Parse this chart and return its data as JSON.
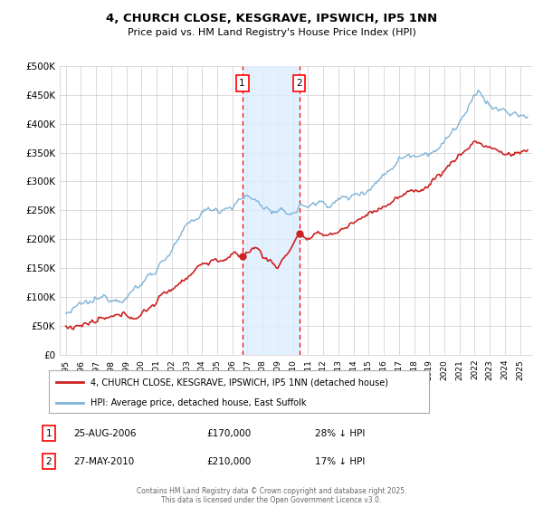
{
  "title": "4, CHURCH CLOSE, KESGRAVE, IPSWICH, IP5 1NN",
  "subtitle": "Price paid vs. HM Land Registry's House Price Index (HPI)",
  "ytick_labels": [
    "£0",
    "£50K",
    "£100K",
    "£150K",
    "£200K",
    "£250K",
    "£300K",
    "£350K",
    "£400K",
    "£450K",
    "£500K"
  ],
  "yticks": [
    0,
    50000,
    100000,
    150000,
    200000,
    250000,
    300000,
    350000,
    400000,
    450000,
    500000
  ],
  "hpi_color": "#7eb3d8",
  "price_color": "#cc2222",
  "sale1_date": "25-AUG-2006",
  "sale1_price": "£170,000",
  "sale1_hpi_pct": "28% ↓ HPI",
  "sale1_year": 2006.65,
  "sale1_value": 170000,
  "sale2_date": "27-MAY-2010",
  "sale2_price": "£210,000",
  "sale2_hpi_pct": "17% ↓ HPI",
  "sale2_year": 2010.41,
  "sale2_value": 210000,
  "legend_property": "4, CHURCH CLOSE, KESGRAVE, IPSWICH, IP5 1NN (detached house)",
  "legend_hpi": "HPI: Average price, detached house, East Suffolk",
  "footnote1": "Contains HM Land Registry data © Crown copyright and database right 2025.",
  "footnote2": "This data is licensed under the Open Government Licence v3.0.",
  "background_color": "#ffffff",
  "grid_color": "#cccccc",
  "shade_color": "#ddeeff",
  "xlim_left": 1994.6,
  "xlim_right": 2025.8,
  "ylim_top": 500000,
  "ylim_bottom": 0
}
